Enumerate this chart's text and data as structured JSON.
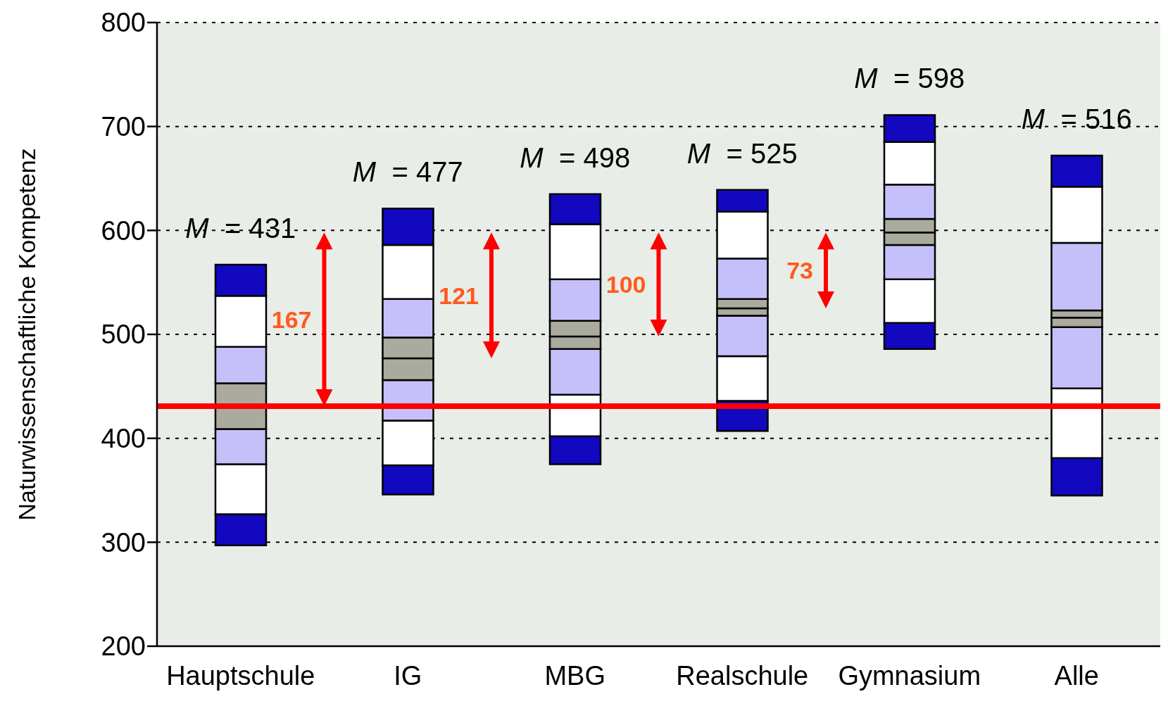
{
  "chart_data": {
    "type": "bar",
    "ylabel": "Naturwissenschaftliche Kompetenz",
    "categories": [
      "Hauptschule",
      "IG",
      "MBG",
      "Realschule",
      "Gymnasium",
      "Alle"
    ],
    "series": [
      {
        "color": "#1208c0",
        "base": [
          297,
          346,
          375,
          407,
          486,
          345
        ],
        "values": [
          30,
          28,
          27,
          29,
          25,
          36
        ]
      },
      {
        "color": "#ffffff",
        "base": [
          327,
          374,
          402,
          436,
          511,
          381
        ],
        "values": [
          48,
          43,
          40,
          43,
          42,
          67
        ]
      },
      {
        "color": "#c6c0fa",
        "base": [
          375,
          417,
          442,
          479,
          553,
          448
        ],
        "values": [
          34,
          39,
          44,
          39,
          33,
          59
        ]
      },
      {
        "color": "#aaab9e",
        "base": [
          409,
          456,
          486,
          518,
          586,
          507
        ],
        "values": [
          22,
          21,
          12,
          7,
          12,
          9
        ]
      },
      {
        "color": "#aaab9e",
        "base": [
          431,
          477,
          498,
          525,
          598,
          516
        ],
        "values": [
          22,
          20,
          15,
          9,
          13,
          7
        ]
      },
      {
        "color": "#c6c0fa",
        "base": [
          453,
          497,
          513,
          534,
          611,
          523
        ],
        "values": [
          35,
          37,
          40,
          39,
          33,
          65
        ]
      },
      {
        "color": "#ffffff",
        "base": [
          488,
          534,
          553,
          573,
          644,
          588
        ],
        "values": [
          49,
          52,
          53,
          45,
          41,
          54
        ]
      },
      {
        "color": "#1208c0",
        "base": [
          537,
          586,
          606,
          618,
          685,
          642
        ],
        "values": [
          30,
          35,
          29,
          21,
          26,
          30
        ]
      }
    ],
    "ylim": [
      200,
      800
    ],
    "yticks": [
      200,
      300,
      400,
      500,
      600,
      700,
      800
    ],
    "grid": "y",
    "legend": false,
    "ref_lines": [
      {
        "axis": "y",
        "value": 431,
        "color": "#ff0000"
      }
    ],
    "annotations": [
      "M = 431",
      "M = 477",
      "M = 498",
      "M = 525",
      "M = 598",
      "M = 516",
      "167",
      "121",
      "100",
      "73"
    ]
  }
}
